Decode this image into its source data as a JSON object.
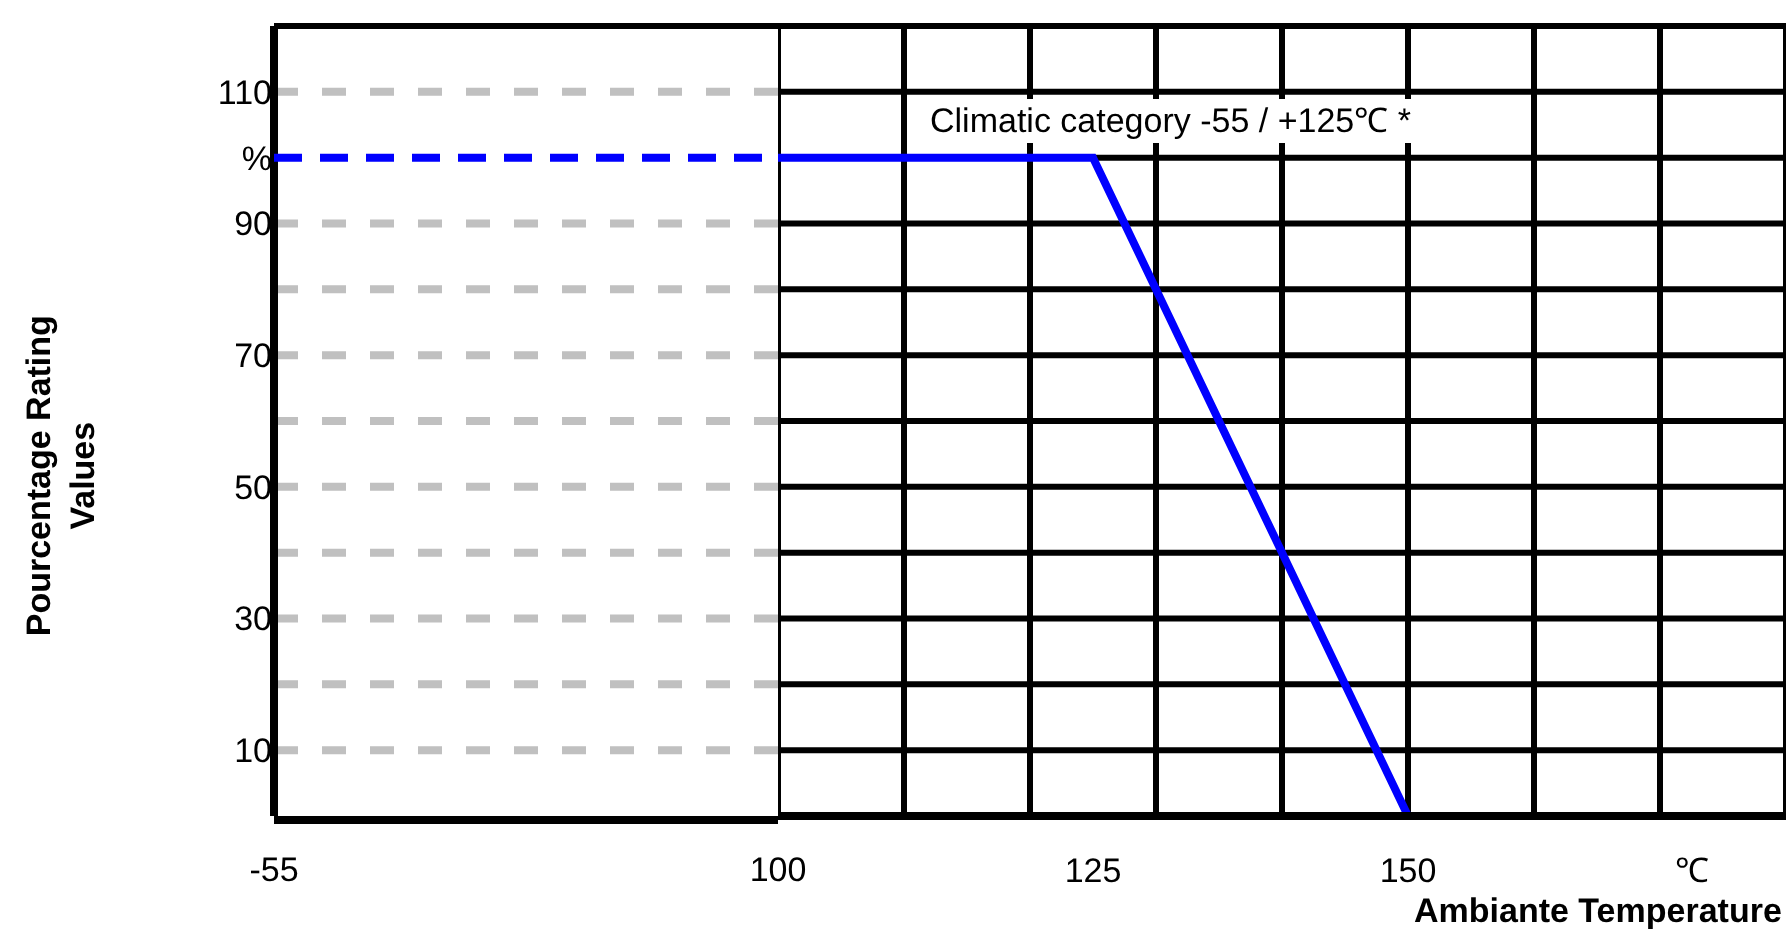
{
  "chart_data": [
    {
      "type": "line",
      "ylabel": "Pourcentage Rating\nValues",
      "xlim": [
        -55,
        100
      ],
      "xticks": [
        -55,
        100
      ],
      "ylim": [
        0,
        120
      ],
      "yticks": [
        10,
        {
          "value": 20,
          "label": null
        },
        30,
        {
          "value": 40,
          "label": null
        },
        50,
        {
          "value": 60,
          "label": null
        },
        70,
        {
          "value": 80,
          "label": null
        },
        90,
        {
          "value": 100,
          "label": "%"
        },
        110
      ],
      "grid": "y",
      "series": [
        {
          "color": "#0000ff",
          "line_style": "dashed",
          "x": [
            -55,
            100
          ],
          "values": [
            100,
            100
          ]
        }
      ]
    },
    {
      "type": "line",
      "xlabel": "Ambiante Temperature",
      "xlim": [
        100,
        180
      ],
      "ylim": [
        0,
        120
      ],
      "tick_labels": "x",
      "grid": true,
      "xticks": [
        {
          "value": 100,
          "label": null
        },
        {
          "value": 110,
          "label": null
        },
        {
          "value": 120,
          "label": null
        },
        {
          "value": 125,
          "label": "125"
        },
        {
          "value": 130,
          "label": null
        },
        {
          "value": 140,
          "label": null
        },
        150,
        {
          "value": 160,
          "label": null
        },
        {
          "value": 170,
          "label": null
        },
        {
          "value": 172.5,
          "label": "℃"
        },
        {
          "value": 180,
          "label": null
        }
      ],
      "yticks": [
        10,
        20,
        30,
        40,
        50,
        60,
        70,
        80,
        90,
        100,
        110
      ],
      "annotations": [
        "Climatic category -55 / +125℃ *"
      ],
      "series": [
        {
          "color": "#0000ff",
          "line_style": "solid",
          "x": [
            100,
            125,
            150
          ],
          "values": [
            100,
            100,
            0
          ]
        }
      ]
    }
  ]
}
